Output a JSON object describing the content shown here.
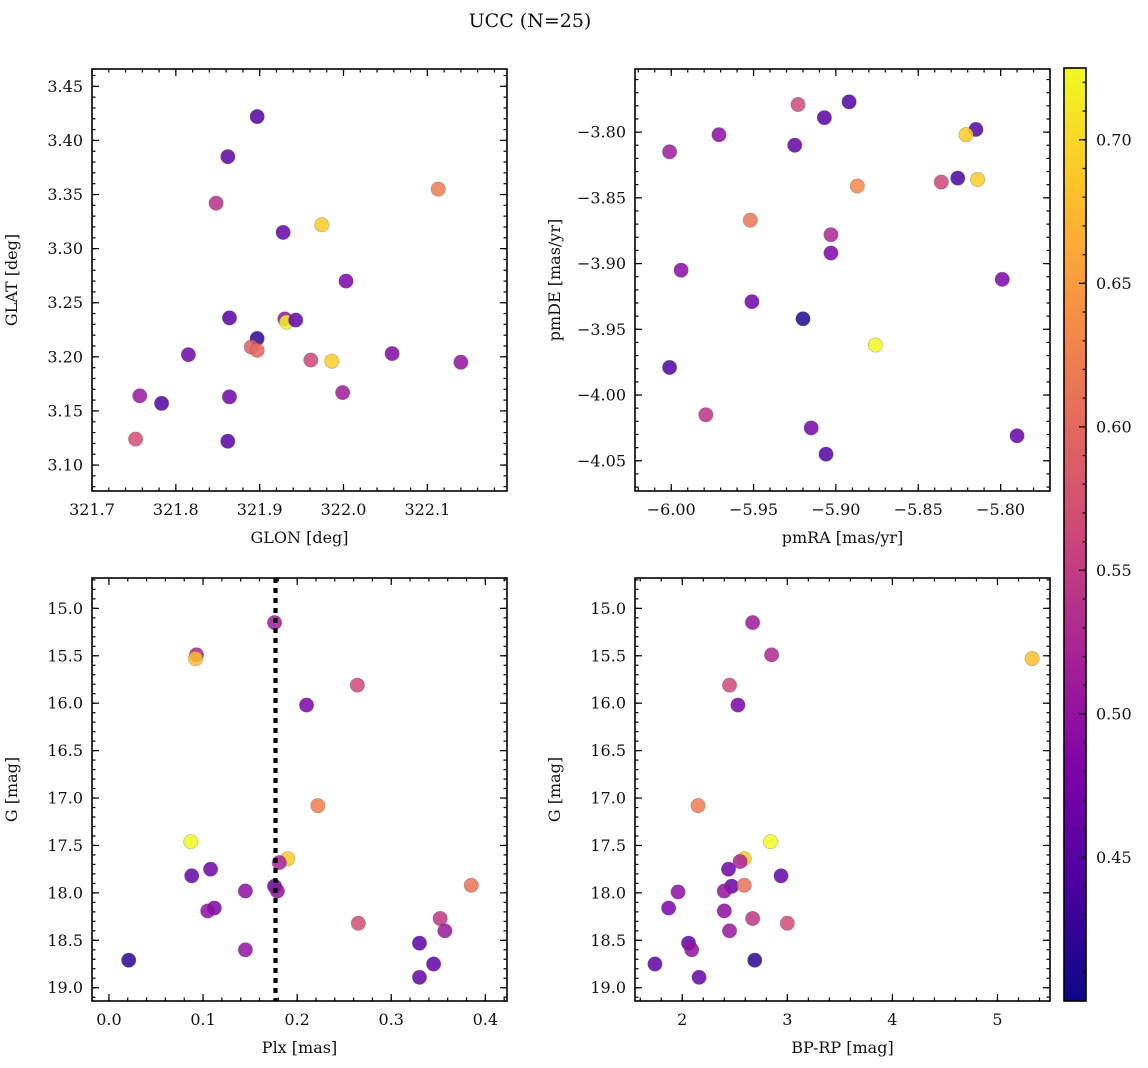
{
  "chart_data": {
    "type": "scatter",
    "title": "UCC (N=25)",
    "colorbar": {
      "colormap": "plasma",
      "range": [
        0.4,
        0.725
      ],
      "ticks": [
        0.45,
        0.5,
        0.55,
        0.6,
        0.65,
        0.7
      ],
      "tick_labels": [
        "0.45",
        "0.50",
        "0.55",
        "0.60",
        "0.65",
        "0.70"
      ]
    },
    "panels": [
      {
        "id": "glon-glat",
        "xlabel": "GLON [deg]",
        "ylabel": "GLAT [deg]",
        "xlim": [
          321.7,
          322.195
        ],
        "ylim": [
          3.076,
          3.466
        ],
        "y_inverted": false,
        "xticks": [
          321.7,
          321.8,
          321.9,
          322.0,
          322.1
        ],
        "xtick_labels": [
          "321.7",
          "321.8",
          "321.9",
          "322.0",
          "322.1"
        ],
        "yticks": [
          3.1,
          3.15,
          3.2,
          3.25,
          3.3,
          3.35,
          3.4,
          3.45
        ],
        "ytick_labels": [
          "3.10",
          "3.15",
          "3.20",
          "3.25",
          "3.30",
          "3.35",
          "3.40",
          "3.45"
        ],
        "points": [
          {
            "x": 321.897,
            "y": 3.422,
            "c": 0.445
          },
          {
            "x": 321.862,
            "y": 3.385,
            "c": 0.455
          },
          {
            "x": 321.848,
            "y": 3.342,
            "c": 0.535
          },
          {
            "x": 321.928,
            "y": 3.315,
            "c": 0.46
          },
          {
            "x": 321.974,
            "y": 3.322,
            "c": 0.69
          },
          {
            "x": 322.113,
            "y": 3.355,
            "c": 0.62
          },
          {
            "x": 322.003,
            "y": 3.27,
            "c": 0.48
          },
          {
            "x": 321.864,
            "y": 3.236,
            "c": 0.45
          },
          {
            "x": 321.93,
            "y": 3.235,
            "c": 0.5
          },
          {
            "x": 321.932,
            "y": 3.232,
            "c": 0.72
          },
          {
            "x": 321.943,
            "y": 3.234,
            "c": 0.46
          },
          {
            "x": 321.897,
            "y": 3.217,
            "c": 0.42
          },
          {
            "x": 321.89,
            "y": 3.209,
            "c": 0.59
          },
          {
            "x": 321.897,
            "y": 3.206,
            "c": 0.6
          },
          {
            "x": 321.815,
            "y": 3.202,
            "c": 0.47
          },
          {
            "x": 321.961,
            "y": 3.197,
            "c": 0.56
          },
          {
            "x": 321.986,
            "y": 3.196,
            "c": 0.69
          },
          {
            "x": 322.058,
            "y": 3.203,
            "c": 0.485
          },
          {
            "x": 322.14,
            "y": 3.195,
            "c": 0.5
          },
          {
            "x": 321.999,
            "y": 3.167,
            "c": 0.51
          },
          {
            "x": 321.757,
            "y": 3.164,
            "c": 0.505
          },
          {
            "x": 321.783,
            "y": 3.157,
            "c": 0.445
          },
          {
            "x": 321.864,
            "y": 3.163,
            "c": 0.47
          },
          {
            "x": 321.752,
            "y": 3.124,
            "c": 0.57
          },
          {
            "x": 321.862,
            "y": 3.122,
            "c": 0.45
          }
        ]
      },
      {
        "id": "pmra-pmde",
        "xlabel": "pmRA [mas/yr]",
        "ylabel": "pmDE [mas/yr]",
        "xlim": [
          -6.022,
          -5.77
        ],
        "ylim": [
          -4.073,
          -3.752
        ],
        "y_inverted": false,
        "xticks": [
          -6.0,
          -5.95,
          -5.9,
          -5.85,
          -5.8
        ],
        "xtick_labels": [
          "−6.00",
          "−5.95",
          "−5.90",
          "−5.85",
          "−5.80"
        ],
        "yticks": [
          -4.05,
          -4.0,
          -3.95,
          -3.9,
          -3.85,
          -3.8
        ],
        "ytick_labels": [
          "−4.05",
          "−4.00",
          "−3.95",
          "−3.90",
          "−3.85",
          "−3.80"
        ],
        "points": [
          {
            "x": -5.923,
            "y": -3.779,
            "c": 0.565
          },
          {
            "x": -5.892,
            "y": -3.777,
            "c": 0.445
          },
          {
            "x": -5.907,
            "y": -3.789,
            "c": 0.45
          },
          {
            "x": -5.971,
            "y": -3.802,
            "c": 0.495
          },
          {
            "x": -5.925,
            "y": -3.81,
            "c": 0.46
          },
          {
            "x": -6.001,
            "y": -3.815,
            "c": 0.51
          },
          {
            "x": -5.815,
            "y": -3.798,
            "c": 0.445
          },
          {
            "x": -5.821,
            "y": -3.802,
            "c": 0.69
          },
          {
            "x": -5.814,
            "y": -3.836,
            "c": 0.69
          },
          {
            "x": -5.826,
            "y": -3.835,
            "c": 0.44
          },
          {
            "x": -5.836,
            "y": -3.838,
            "c": 0.56
          },
          {
            "x": -5.887,
            "y": -3.841,
            "c": 0.63
          },
          {
            "x": -5.952,
            "y": -3.867,
            "c": 0.615
          },
          {
            "x": -5.903,
            "y": -3.878,
            "c": 0.525
          },
          {
            "x": -5.903,
            "y": -3.892,
            "c": 0.48
          },
          {
            "x": -5.994,
            "y": -3.905,
            "c": 0.49
          },
          {
            "x": -5.799,
            "y": -3.912,
            "c": 0.48
          },
          {
            "x": -5.951,
            "y": -3.929,
            "c": 0.47
          },
          {
            "x": -5.92,
            "y": -3.942,
            "c": 0.41
          },
          {
            "x": -5.876,
            "y": -3.962,
            "c": 0.725
          },
          {
            "x": -6.001,
            "y": -3.979,
            "c": 0.44
          },
          {
            "x": -5.979,
            "y": -4.015,
            "c": 0.54
          },
          {
            "x": -5.915,
            "y": -4.025,
            "c": 0.475
          },
          {
            "x": -5.79,
            "y": -4.031,
            "c": 0.46
          },
          {
            "x": -5.906,
            "y": -4.045,
            "c": 0.445
          }
        ]
      },
      {
        "id": "plx-g",
        "xlabel": "Plx [mas]",
        "ylabel": "G [mag]",
        "xlim": [
          -0.018,
          0.423
        ],
        "ylim": [
          14.68,
          19.14
        ],
        "y_inverted": true,
        "xticks": [
          0.0,
          0.1,
          0.2,
          0.3,
          0.4
        ],
        "xtick_labels": [
          "0.0",
          "0.1",
          "0.2",
          "0.3",
          "0.4"
        ],
        "yticks": [
          15.0,
          15.5,
          16.0,
          16.5,
          17.0,
          17.5,
          18.0,
          18.5,
          19.0
        ],
        "ytick_labels": [
          "15.0",
          "15.5",
          "16.0",
          "16.5",
          "17.0",
          "17.5",
          "18.0",
          "18.5",
          "19.0"
        ],
        "vline": {
          "x": 0.177,
          "style": "dotted",
          "color": "#000000"
        },
        "points": [
          {
            "x": 0.176,
            "y": 15.15,
            "c": 0.51
          },
          {
            "x": 0.093,
            "y": 15.49,
            "c": 0.525
          },
          {
            "x": 0.092,
            "y": 15.53,
            "c": 0.68
          },
          {
            "x": 0.264,
            "y": 15.81,
            "c": 0.565
          },
          {
            "x": 0.21,
            "y": 16.02,
            "c": 0.48
          },
          {
            "x": 0.222,
            "y": 17.08,
            "c": 0.62
          },
          {
            "x": 0.087,
            "y": 17.46,
            "c": 0.725
          },
          {
            "x": 0.19,
            "y": 17.64,
            "c": 0.69
          },
          {
            "x": 0.181,
            "y": 17.68,
            "c": 0.52
          },
          {
            "x": 0.088,
            "y": 17.82,
            "c": 0.46
          },
          {
            "x": 0.108,
            "y": 17.75,
            "c": 0.47
          },
          {
            "x": 0.176,
            "y": 17.93,
            "c": 0.46
          },
          {
            "x": 0.179,
            "y": 17.98,
            "c": 0.5
          },
          {
            "x": 0.145,
            "y": 17.98,
            "c": 0.495
          },
          {
            "x": 0.385,
            "y": 17.92,
            "c": 0.61
          },
          {
            "x": 0.112,
            "y": 18.16,
            "c": 0.48
          },
          {
            "x": 0.105,
            "y": 18.19,
            "c": 0.495
          },
          {
            "x": 0.352,
            "y": 18.27,
            "c": 0.545
          },
          {
            "x": 0.265,
            "y": 18.32,
            "c": 0.57
          },
          {
            "x": 0.357,
            "y": 18.4,
            "c": 0.505
          },
          {
            "x": 0.33,
            "y": 18.53,
            "c": 0.455
          },
          {
            "x": 0.145,
            "y": 18.6,
            "c": 0.5
          },
          {
            "x": 0.021,
            "y": 18.71,
            "c": 0.42
          },
          {
            "x": 0.345,
            "y": 18.75,
            "c": 0.455
          },
          {
            "x": 0.33,
            "y": 18.89,
            "c": 0.46
          }
        ]
      },
      {
        "id": "bprp-g",
        "xlabel": "BP-RP [mag]",
        "ylabel": "G [mag]",
        "xlim": [
          1.55,
          5.5
        ],
        "ylim": [
          14.68,
          19.14
        ],
        "y_inverted": true,
        "xticks": [
          2,
          3,
          4,
          5
        ],
        "xtick_labels": [
          "2",
          "3",
          "4",
          "5"
        ],
        "yticks": [
          15.0,
          15.5,
          16.0,
          16.5,
          17.0,
          17.5,
          18.0,
          18.5,
          19.0
        ],
        "ytick_labels": [
          "15.0",
          "15.5",
          "16.0",
          "16.5",
          "17.0",
          "17.5",
          "18.0",
          "18.5",
          "19.0"
        ],
        "points": [
          {
            "x": 2.67,
            "y": 15.15,
            "c": 0.51
          },
          {
            "x": 2.85,
            "y": 15.49,
            "c": 0.525
          },
          {
            "x": 5.33,
            "y": 15.53,
            "c": 0.68
          },
          {
            "x": 2.45,
            "y": 15.81,
            "c": 0.565
          },
          {
            "x": 2.53,
            "y": 16.02,
            "c": 0.48
          },
          {
            "x": 2.15,
            "y": 17.08,
            "c": 0.62
          },
          {
            "x": 2.84,
            "y": 17.46,
            "c": 0.725
          },
          {
            "x": 2.59,
            "y": 17.64,
            "c": 0.69
          },
          {
            "x": 2.55,
            "y": 17.67,
            "c": 0.52
          },
          {
            "x": 2.44,
            "y": 17.75,
            "c": 0.47
          },
          {
            "x": 2.94,
            "y": 17.82,
            "c": 0.46
          },
          {
            "x": 2.47,
            "y": 17.93,
            "c": 0.46
          },
          {
            "x": 2.59,
            "y": 17.92,
            "c": 0.61
          },
          {
            "x": 2.4,
            "y": 17.98,
            "c": 0.5
          },
          {
            "x": 1.96,
            "y": 17.99,
            "c": 0.495
          },
          {
            "x": 1.87,
            "y": 18.16,
            "c": 0.48
          },
          {
            "x": 2.4,
            "y": 18.19,
            "c": 0.495
          },
          {
            "x": 2.67,
            "y": 18.27,
            "c": 0.545
          },
          {
            "x": 3.0,
            "y": 18.32,
            "c": 0.57
          },
          {
            "x": 2.45,
            "y": 18.4,
            "c": 0.505
          },
          {
            "x": 2.06,
            "y": 18.53,
            "c": 0.455
          },
          {
            "x": 2.09,
            "y": 18.6,
            "c": 0.5
          },
          {
            "x": 2.69,
            "y": 18.71,
            "c": 0.42
          },
          {
            "x": 1.74,
            "y": 18.75,
            "c": 0.455
          },
          {
            "x": 2.16,
            "y": 18.89,
            "c": 0.46
          }
        ]
      }
    ]
  }
}
